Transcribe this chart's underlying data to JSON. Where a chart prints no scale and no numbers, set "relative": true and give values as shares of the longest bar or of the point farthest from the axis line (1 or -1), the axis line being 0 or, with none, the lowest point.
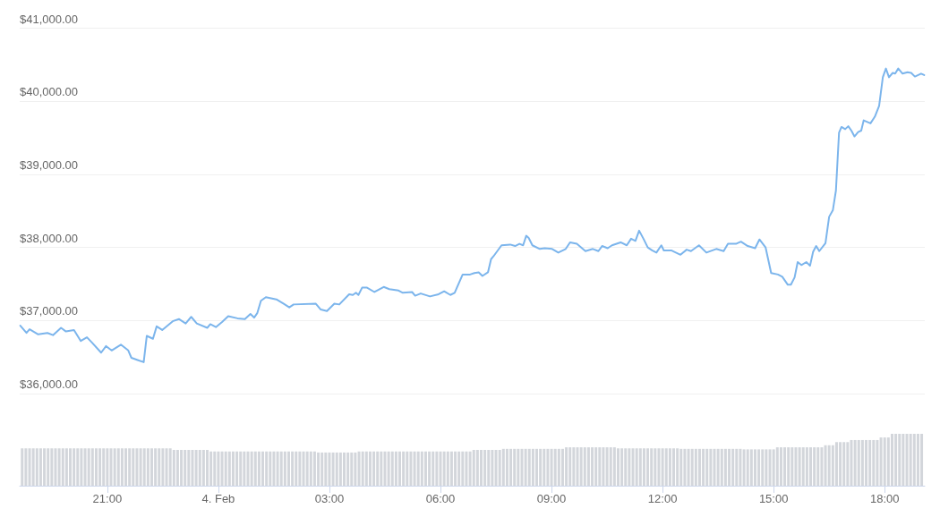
{
  "chart_data": [
    {
      "type": "line",
      "xlim": [
        "--02-03T18:38",
        "--02-04T19:05"
      ],
      "ylim": [
        36000,
        41000
      ],
      "yticks": [
        {
          "value": 36000,
          "label": "$36,000.00"
        },
        {
          "value": 37000,
          "label": "$37,000.00"
        },
        {
          "value": 38000,
          "label": "$38,000.00"
        },
        {
          "value": 39000,
          "label": "$39,000.00"
        },
        {
          "value": 40000,
          "label": "$40,000.00"
        },
        {
          "value": 41000,
          "label": "$41,000.00"
        }
      ],
      "grid": "y",
      "tick_labels": "y",
      "marker": "none",
      "line_style": "solid",
      "series": [
        {
          "color": "#7cb5ec",
          "x": [
            "--02-03T18:39",
            "--02-03T18:49",
            "--02-03T18:54",
            "--02-03T19:08",
            "--02-03T19:23",
            "--02-03T19:32",
            "--02-03T19:45",
            "--02-03T19:53",
            "--02-03T20:06",
            "--02-03T20:17",
            "--02-03T20:27",
            "--02-03T20:35",
            "--02-03T20:50",
            "--02-03T20:58",
            "--02-03T21:07",
            "--02-03T21:22",
            "--02-03T21:34",
            "--02-03T21:39",
            "--02-03T21:49",
            "--02-03T21:59",
            "--02-03T22:04",
            "--02-03T22:14",
            "--02-03T22:20",
            "--02-03T22:29",
            "--02-03T22:46",
            "--02-03T22:56",
            "--02-03T23:07",
            "--02-03T23:16",
            "--02-03T23:25",
            "--02-03T23:42",
            "--02-03T23:47",
            "--02-03T23:56",
            "--02-04T00:06",
            "--02-04T00:16",
            "--02-04T00:31",
            "--02-04T00:43",
            "--02-04T00:52",
            "--02-04T00:58",
            "--02-04T01:03",
            "--02-04T01:09",
            "--02-04T01:17",
            "--02-04T01:34",
            "--02-04T01:46",
            "--02-04T01:55",
            "--02-04T02:02",
            "--02-04T02:38",
            "--02-04T02:46",
            "--02-04T02:56",
            "--02-04T03:08",
            "--02-04T03:16",
            "--02-04T03:32",
            "--02-04T03:38",
            "--02-04T03:43",
            "--02-04T03:47",
            "--02-04T03:53",
            "--02-04T04:01",
            "--02-04T04:13",
            "--02-04T04:28",
            "--02-04T04:37",
            "--02-04T04:52",
            "--02-04T04:59",
            "--02-04T05:14",
            "--02-04T05:19",
            "--02-04T05:28",
            "--02-04T05:43",
            "--02-04T05:57",
            "--02-04T06:06",
            "--02-04T06:16",
            "--02-04T06:23",
            "--02-04T06:36",
            "--02-04T06:48",
            "--02-04T06:55",
            "--02-04T07:02",
            "--02-04T07:08",
            "--02-04T07:17",
            "--02-04T07:22",
            "--02-04T07:26",
            "--02-04T07:39",
            "--02-04T07:53",
            "--02-04T08:01",
            "--02-04T08:08",
            "--02-04T08:14",
            "--02-04T08:19",
            "--02-04T08:23",
            "--02-04T08:29",
            "--02-04T08:41",
            "--02-04T08:49",
            "--02-04T09:01",
            "--02-04T09:11",
            "--02-04T09:23",
            "--02-04T09:30",
            "--02-04T09:41",
            "--02-04T09:55",
            "--02-04T10:07",
            "--02-04T10:16",
            "--02-04T10:22",
            "--02-04T10:31",
            "--02-04T10:38",
            "--02-04T10:52",
            "--02-04T11:02",
            "--02-04T11:09",
            "--02-04T11:16",
            "--02-04T11:22",
            "--02-04T11:29",
            "--02-04T11:36",
            "--02-04T11:43",
            "--02-04T11:50",
            "--02-04T11:58",
            "--02-04T12:02",
            "--02-04T12:14",
            "--02-04T12:29",
            "--02-04T12:39",
            "--02-04T12:46",
            "--02-04T12:59",
            "--02-04T13:11",
            "--02-04T13:27",
            "--02-04T13:39",
            "--02-04T13:46",
            "--02-04T13:59",
            "--02-04T14:07",
            "--02-04T14:18",
            "--02-04T14:30",
            "--02-04T14:37",
            "--02-04T14:47",
            "--02-04T14:56",
            "--02-04T15:07",
            "--02-04T15:14",
            "--02-04T15:23",
            "--02-04T15:28",
            "--02-04T15:34",
            "--02-04T15:39",
            "--02-04T15:45",
            "--02-04T15:53",
            "--02-04T15:59",
            "--02-04T16:04",
            "--02-04T16:09",
            "--02-04T16:14",
            "--02-04T16:24",
            "--02-04T16:30",
            "--02-04T16:36",
            "--02-04T16:41",
            "--02-04T16:46",
            "--02-04T16:50",
            "--02-04T16:56",
            "--02-04T17:01",
            "--02-04T17:06",
            "--02-04T17:11",
            "--02-04T17:17",
            "--02-04T17:22",
            "--02-04T17:26",
            "--02-04T17:37",
            "--02-04T17:44",
            "--02-04T17:51",
            "--02-04T17:57",
            "--02-04T18:02",
            "--02-04T18:07",
            "--02-04T18:13",
            "--02-04T18:17",
            "--02-04T18:22",
            "--02-04T18:29",
            "--02-04T18:37",
            "--02-04T18:43",
            "--02-04T18:49",
            "--02-04T18:59",
            "--02-04T19:04"
          ],
          "values": [
            36930,
            36830,
            36880,
            36810,
            36830,
            36800,
            36900,
            36850,
            36870,
            36720,
            36770,
            36700,
            36560,
            36650,
            36590,
            36670,
            36590,
            36490,
            36460,
            36430,
            36790,
            36750,
            36920,
            36870,
            36990,
            37020,
            36960,
            37050,
            36960,
            36900,
            36950,
            36910,
            36980,
            37060,
            37030,
            37020,
            37090,
            37040,
            37100,
            37270,
            37320,
            37290,
            37230,
            37180,
            37220,
            37230,
            37150,
            37130,
            37230,
            37220,
            37360,
            37350,
            37380,
            37350,
            37450,
            37450,
            37390,
            37460,
            37430,
            37410,
            37380,
            37390,
            37340,
            37370,
            37330,
            37360,
            37400,
            37350,
            37380,
            37630,
            37630,
            37650,
            37660,
            37610,
            37660,
            37840,
            37880,
            38030,
            38040,
            38020,
            38050,
            38030,
            38160,
            38130,
            38030,
            37980,
            37990,
            37980,
            37930,
            37980,
            38070,
            38050,
            37950,
            37980,
            37950,
            38020,
            37990,
            38030,
            38070,
            38030,
            38120,
            38090,
            38230,
            38120,
            38000,
            37960,
            37930,
            38030,
            37960,
            37960,
            37900,
            37970,
            37950,
            38030,
            37930,
            37980,
            37950,
            38050,
            38050,
            38080,
            38020,
            37990,
            38110,
            38000,
            37650,
            37630,
            37600,
            37490,
            37490,
            37590,
            37800,
            37760,
            37800,
            37750,
            37940,
            38020,
            37950,
            38060,
            38420,
            38510,
            38780,
            39570,
            39650,
            39620,
            39660,
            39600,
            39520,
            39580,
            39600,
            39740,
            39700,
            39790,
            39940,
            40330,
            40450,
            40330,
            40390,
            40380,
            40450,
            40380,
            40400,
            40390,
            40340,
            40380,
            40360
          ]
        }
      ]
    },
    {
      "type": "bar",
      "relative": true,
      "xlim": [
        "--02-03T18:38",
        "--02-04T19:05"
      ],
      "xticks": [
        {
          "value": "--02-03T21:00",
          "label": "21:00"
        },
        {
          "value": "--02-04T00:00",
          "label": "4. Feb"
        },
        {
          "value": "--02-04T03:00",
          "label": "03:00"
        },
        {
          "value": "--02-04T06:00",
          "label": "06:00"
        },
        {
          "value": "--02-04T09:00",
          "label": "09:00"
        },
        {
          "value": "--02-04T12:00",
          "label": "12:00"
        },
        {
          "value": "--02-04T15:00",
          "label": "15:00"
        },
        {
          "value": "--02-04T18:00",
          "label": "18:00"
        }
      ],
      "tick_labels": "x",
      "series": [
        {
          "color": "#d3d6db",
          "x": [
            "--02-03T18:42",
            "--02-03T18:48",
            "--02-03T18:54",
            "--02-03T19:00",
            "--02-03T19:06",
            "--02-03T19:12",
            "--02-03T19:18",
            "--02-03T19:24",
            "--02-03T19:30",
            "--02-03T19:36",
            "--02-03T19:42",
            "--02-03T19:48",
            "--02-03T19:54",
            "--02-03T20:00",
            "--02-03T20:06",
            "--02-03T20:12",
            "--02-03T20:18",
            "--02-03T20:24",
            "--02-03T20:30",
            "--02-03T20:36",
            "--02-03T20:42",
            "--02-03T20:48",
            "--02-03T20:54",
            "--02-03T21:00",
            "--02-03T21:06",
            "--02-03T21:12",
            "--02-03T21:18",
            "--02-03T21:24",
            "--02-03T21:30",
            "--02-03T21:36",
            "--02-03T21:42",
            "--02-03T21:48",
            "--02-03T21:54",
            "--02-03T22:00",
            "--02-03T22:06",
            "--02-03T22:12",
            "--02-03T22:18",
            "--02-03T22:24",
            "--02-03T22:30",
            "--02-03T22:36",
            "--02-03T22:42",
            "--02-03T22:48",
            "--02-03T22:54",
            "--02-03T23:00",
            "--02-03T23:06",
            "--02-03T23:12",
            "--02-03T23:18",
            "--02-03T23:24",
            "--02-03T23:30",
            "--02-03T23:36",
            "--02-03T23:42",
            "--02-03T23:48",
            "--02-03T23:54",
            "--02-04T00:00",
            "--02-04T00:06",
            "--02-04T00:12",
            "--02-04T00:18",
            "--02-04T00:24",
            "--02-04T00:30",
            "--02-04T00:36",
            "--02-04T00:42",
            "--02-04T00:48",
            "--02-04T00:54",
            "--02-04T01:00",
            "--02-04T01:06",
            "--02-04T01:12",
            "--02-04T01:18",
            "--02-04T01:24",
            "--02-04T01:30",
            "--02-04T01:36",
            "--02-04T01:42",
            "--02-04T01:48",
            "--02-04T01:54",
            "--02-04T02:00",
            "--02-04T02:06",
            "--02-04T02:12",
            "--02-04T02:18",
            "--02-04T02:24",
            "--02-04T02:30",
            "--02-04T02:36",
            "--02-04T02:42",
            "--02-04T02:48",
            "--02-04T02:54",
            "--02-04T03:00",
            "--02-04T03:06",
            "--02-04T03:12",
            "--02-04T03:18",
            "--02-04T03:24",
            "--02-04T03:30",
            "--02-04T03:36",
            "--02-04T03:42",
            "--02-04T03:48",
            "--02-04T03:54",
            "--02-04T04:00",
            "--02-04T04:06",
            "--02-04T04:12",
            "--02-04T04:18",
            "--02-04T04:24",
            "--02-04T04:30",
            "--02-04T04:36",
            "--02-04T04:42",
            "--02-04T04:48",
            "--02-04T04:54",
            "--02-04T05:00",
            "--02-04T05:06",
            "--02-04T05:12",
            "--02-04T05:18",
            "--02-04T05:24",
            "--02-04T05:30",
            "--02-04T05:36",
            "--02-04T05:42",
            "--02-04T05:48",
            "--02-04T05:54",
            "--02-04T06:00",
            "--02-04T06:06",
            "--02-04T06:12",
            "--02-04T06:18",
            "--02-04T06:24",
            "--02-04T06:30",
            "--02-04T06:36",
            "--02-04T06:42",
            "--02-04T06:48",
            "--02-04T06:54",
            "--02-04T07:00",
            "--02-04T07:06",
            "--02-04T07:12",
            "--02-04T07:18",
            "--02-04T07:24",
            "--02-04T07:30",
            "--02-04T07:36",
            "--02-04T07:42",
            "--02-04T07:48",
            "--02-04T07:54",
            "--02-04T08:00",
            "--02-04T08:06",
            "--02-04T08:12",
            "--02-04T08:18",
            "--02-04T08:24",
            "--02-04T08:30",
            "--02-04T08:36",
            "--02-04T08:42",
            "--02-04T08:48",
            "--02-04T08:54",
            "--02-04T09:00",
            "--02-04T09:06",
            "--02-04T09:12",
            "--02-04T09:18",
            "--02-04T09:24",
            "--02-04T09:30",
            "--02-04T09:36",
            "--02-04T09:42",
            "--02-04T09:48",
            "--02-04T09:54",
            "--02-04T10:00",
            "--02-04T10:06",
            "--02-04T10:12",
            "--02-04T10:18",
            "--02-04T10:24",
            "--02-04T10:30",
            "--02-04T10:36",
            "--02-04T10:42",
            "--02-04T10:48",
            "--02-04T10:54",
            "--02-04T11:00",
            "--02-04T11:06",
            "--02-04T11:12",
            "--02-04T11:18",
            "--02-04T11:24",
            "--02-04T11:30",
            "--02-04T11:36",
            "--02-04T11:42",
            "--02-04T11:48",
            "--02-04T11:54",
            "--02-04T12:00",
            "--02-04T12:06",
            "--02-04T12:12",
            "--02-04T12:18",
            "--02-04T12:24",
            "--02-04T12:30",
            "--02-04T12:36",
            "--02-04T12:42",
            "--02-04T12:48",
            "--02-04T12:54",
            "--02-04T13:00",
            "--02-04T13:06",
            "--02-04T13:12",
            "--02-04T13:18",
            "--02-04T13:24",
            "--02-04T13:30",
            "--02-04T13:36",
            "--02-04T13:42",
            "--02-04T13:48",
            "--02-04T13:54",
            "--02-04T14:00",
            "--02-04T14:06",
            "--02-04T14:12",
            "--02-04T14:18",
            "--02-04T14:24",
            "--02-04T14:30",
            "--02-04T14:36",
            "--02-04T14:42",
            "--02-04T14:48",
            "--02-04T14:54",
            "--02-04T15:00",
            "--02-04T15:06",
            "--02-04T15:12",
            "--02-04T15:18",
            "--02-04T15:24",
            "--02-04T15:30",
            "--02-04T15:36",
            "--02-04T15:42",
            "--02-04T15:48",
            "--02-04T15:54",
            "--02-04T16:00",
            "--02-04T16:06",
            "--02-04T16:12",
            "--02-04T16:18",
            "--02-04T16:24",
            "--02-04T16:30",
            "--02-04T16:36",
            "--02-04T16:42",
            "--02-04T16:48",
            "--02-04T16:54",
            "--02-04T17:00",
            "--02-04T17:06",
            "--02-04T17:12",
            "--02-04T17:18",
            "--02-04T17:24",
            "--02-04T17:30",
            "--02-04T17:36",
            "--02-04T17:42",
            "--02-04T17:48",
            "--02-04T17:54",
            "--02-04T18:00",
            "--02-04T18:06",
            "--02-04T18:12",
            "--02-04T18:18",
            "--02-04T18:24",
            "--02-04T18:30",
            "--02-04T18:36",
            "--02-04T18:42",
            "--02-04T18:48",
            "--02-04T18:54",
            "--02-04T19:00"
          ],
          "values": [
            0.72,
            0.72,
            0.72,
            0.72,
            0.72,
            0.72,
            0.72,
            0.72,
            0.72,
            0.72,
            0.72,
            0.72,
            0.72,
            0.72,
            0.72,
            0.72,
            0.72,
            0.72,
            0.72,
            0.72,
            0.72,
            0.72,
            0.72,
            0.72,
            0.72,
            0.72,
            0.72,
            0.72,
            0.72,
            0.72,
            0.72,
            0.72,
            0.72,
            0.72,
            0.72,
            0.72,
            0.72,
            0.72,
            0.72,
            0.72,
            0.72,
            0.69,
            0.69,
            0.69,
            0.69,
            0.69,
            0.69,
            0.69,
            0.69,
            0.69,
            0.69,
            0.66,
            0.66,
            0.66,
            0.66,
            0.66,
            0.66,
            0.66,
            0.66,
            0.66,
            0.66,
            0.66,
            0.66,
            0.66,
            0.66,
            0.66,
            0.66,
            0.66,
            0.66,
            0.66,
            0.66,
            0.66,
            0.66,
            0.66,
            0.66,
            0.66,
            0.66,
            0.66,
            0.66,
            0.66,
            0.64,
            0.64,
            0.64,
            0.64,
            0.64,
            0.64,
            0.64,
            0.64,
            0.64,
            0.64,
            0.64,
            0.66,
            0.66,
            0.66,
            0.66,
            0.66,
            0.66,
            0.66,
            0.66,
            0.66,
            0.66,
            0.66,
            0.66,
            0.66,
            0.66,
            0.66,
            0.66,
            0.66,
            0.66,
            0.66,
            0.66,
            0.66,
            0.66,
            0.66,
            0.66,
            0.66,
            0.66,
            0.66,
            0.66,
            0.66,
            0.66,
            0.66,
            0.69,
            0.69,
            0.69,
            0.69,
            0.69,
            0.69,
            0.69,
            0.69,
            0.71,
            0.71,
            0.71,
            0.71,
            0.71,
            0.71,
            0.71,
            0.71,
            0.71,
            0.71,
            0.71,
            0.71,
            0.71,
            0.71,
            0.71,
            0.71,
            0.71,
            0.74,
            0.74,
            0.74,
            0.74,
            0.74,
            0.74,
            0.74,
            0.74,
            0.74,
            0.74,
            0.74,
            0.74,
            0.74,
            0.74,
            0.72,
            0.72,
            0.72,
            0.72,
            0.72,
            0.72,
            0.72,
            0.72,
            0.72,
            0.72,
            0.72,
            0.72,
            0.72,
            0.72,
            0.72,
            0.72,
            0.72,
            0.71,
            0.71,
            0.71,
            0.71,
            0.71,
            0.71,
            0.71,
            0.71,
            0.71,
            0.71,
            0.71,
            0.71,
            0.71,
            0.71,
            0.71,
            0.71,
            0.71,
            0.7,
            0.7,
            0.7,
            0.7,
            0.7,
            0.7,
            0.7,
            0.7,
            0.7,
            0.74,
            0.74,
            0.74,
            0.74,
            0.74,
            0.74,
            0.74,
            0.74,
            0.74,
            0.74,
            0.74,
            0.74,
            0.74,
            0.78,
            0.78,
            0.78,
            0.84,
            0.84,
            0.84,
            0.84,
            0.88,
            0.88,
            0.88,
            0.88,
            0.88,
            0.88,
            0.88,
            0.88,
            0.93,
            0.93,
            0.93,
            1,
            1,
            1,
            1,
            1,
            1,
            1,
            1,
            1
          ]
        }
      ]
    }
  ]
}
